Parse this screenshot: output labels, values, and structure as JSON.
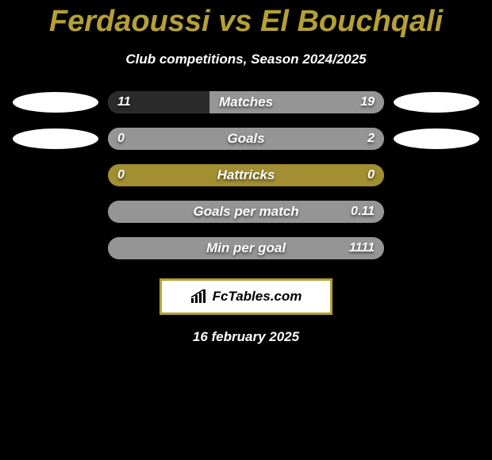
{
  "title": "Ferdaoussi vs El Bouchqali",
  "subtitle": "Club competitions, Season 2024/2025",
  "date": "16 february 2025",
  "logo_text": "FcTables.com",
  "colors": {
    "accent": "#b4a035",
    "bar_bg": "#a18f32",
    "bar_left": "#2b2b2b",
    "bar_right": "#959595",
    "badge": "#ffffff",
    "bg": "#000000",
    "text": "#ffffff"
  },
  "stats": [
    {
      "label": "Matches",
      "left_val": "11",
      "right_val": "19",
      "left_pct": 36.7,
      "right_pct": 63.3,
      "show_badges": true
    },
    {
      "label": "Goals",
      "left_val": "0",
      "right_val": "2",
      "left_pct": 0,
      "right_pct": 100,
      "show_badges": true
    },
    {
      "label": "Hattricks",
      "left_val": "0",
      "right_val": "0",
      "left_pct": 0,
      "right_pct": 0,
      "show_badges": false
    },
    {
      "label": "Goals per match",
      "left_val": "",
      "right_val": "0.11",
      "left_pct": 0,
      "right_pct": 100,
      "show_badges": false
    },
    {
      "label": "Min per goal",
      "left_val": "",
      "right_val": "1111",
      "left_pct": 0,
      "right_pct": 100,
      "show_badges": false
    }
  ]
}
